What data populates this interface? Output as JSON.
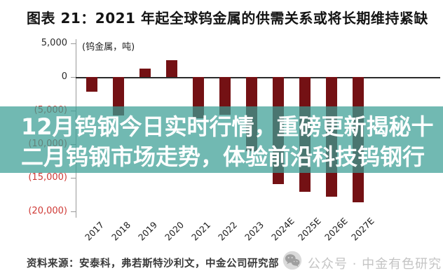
{
  "title": "图表 21：2021 年起全球钨金属的供需关系或将长期维持紧缺",
  "overlay_banner": {
    "line1": "12月钨钢今日实时行情，重磅更新揭秘十",
    "line2": "二月钨钢市场走势，体验前沿科技钨钢行",
    "bg_color": "rgba(58,158,148,0.72)",
    "text_color": "#ffffff"
  },
  "chart_data": {
    "type": "bar",
    "title": "图表 21：2021 年起全球钨金属的供需关系或将长期维持紧缺",
    "unit_label": "(钨金属，吨)",
    "categories": [
      "2017",
      "2018",
      "2019",
      "2020",
      "2021",
      "2022",
      "2023",
      "2024E",
      "2025E",
      "2026E",
      "2027E"
    ],
    "values": [
      -2200,
      -5700,
      1300,
      2550,
      -6100,
      -5600,
      -11000,
      -15900,
      -17100,
      -17800,
      -18600
    ],
    "xlabel": "",
    "ylabel": "钨金属，吨",
    "ylim": [
      -21000,
      5000
    ],
    "grid": false,
    "legend": "none",
    "bar_color": "#741114",
    "y_ticks": [
      {
        "value": 5000,
        "label": "5,000",
        "color": "#2b2b2b"
      },
      {
        "value": 0,
        "label": "0",
        "color": "#2b2b2b"
      },
      {
        "value": -5000,
        "label": "(5,000)",
        "color": "#cf3a36"
      },
      {
        "value": -10000,
        "label": "(10,000)",
        "color": "#cf3a36"
      },
      {
        "value": -15000,
        "label": "(15,000)",
        "color": "#cf3a36"
      },
      {
        "value": -20000,
        "label": "(20,000)",
        "color": "#cf3a36"
      }
    ]
  },
  "footer": {
    "source": "资料来源：安泰科，弗若斯特沙利文，中金公司研究部",
    "watermark": "公众号 · 中金有色研究",
    "watermark_color": "#c4c4c4",
    "wechat_icon": "wechat-logo-icon"
  }
}
